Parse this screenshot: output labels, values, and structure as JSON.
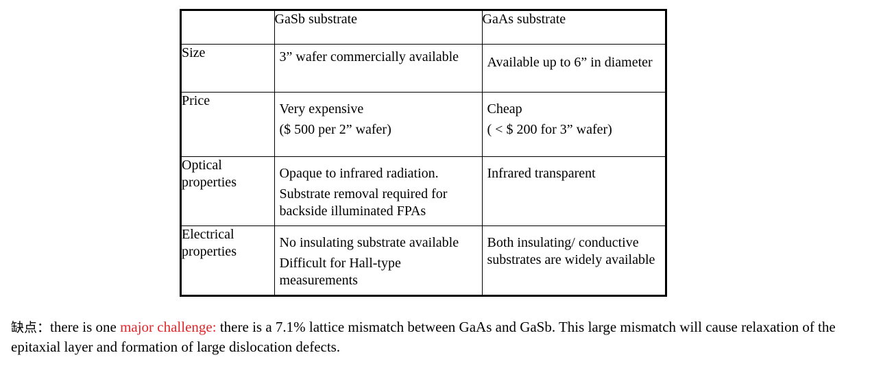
{
  "table": {
    "headers": [
      "",
      "GaSb substrate",
      "GaAs substrate"
    ],
    "rows": [
      {
        "label": [
          "Size"
        ],
        "gasb": [
          "3” wafer commercially available"
        ],
        "gaas": [
          "Available up to 6” in diameter"
        ]
      },
      {
        "label": [
          "Price"
        ],
        "gasb": [
          "Very expensive",
          "($ 500 per 2” wafer)"
        ],
        "gaas": [
          "Cheap",
          "( < $ 200 for 3” wafer)"
        ]
      },
      {
        "label": [
          "Optical",
          "properties"
        ],
        "gasb": [
          "Opaque to infrared radiation.",
          "Substrate removal required for backside illuminated FPAs"
        ],
        "gaas": [
          "Infrared transparent"
        ]
      },
      {
        "label": [
          "Electrical",
          "properties"
        ],
        "gasb": [
          "No insulating substrate available",
          "Difficult for Hall-type measurements"
        ],
        "gaas": [
          "Both insulating/ conductive substrates are widely available"
        ]
      }
    ]
  },
  "note": {
    "lead": "缺点：",
    "pre": "there is one ",
    "highlight": "major challenge:",
    "post": " there is a 7.1% lattice mismatch between GaAs and GaSb. This large mismatch will cause relaxation of the epitaxial layer and formation of large dislocation defects.",
    "highlight_color": "#e0262b"
  }
}
